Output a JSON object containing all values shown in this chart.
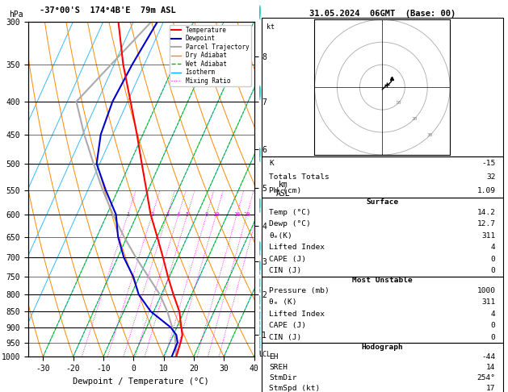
{
  "title_left": "-37°00'S  174°4B'E  79m ASL",
  "title_right": "31.05.2024  06GMT  (Base: 00)",
  "xlabel": "Dewpoint / Temperature (°C)",
  "temp_profile": {
    "pressure": [
      1000,
      950,
      925,
      900,
      850,
      800,
      750,
      700,
      650,
      600,
      550,
      500,
      450,
      400,
      350,
      300
    ],
    "temperature": [
      14.2,
      13.5,
      13.0,
      11.5,
      8.5,
      4.0,
      -0.5,
      -5.0,
      -10.0,
      -15.5,
      -20.5,
      -26.0,
      -32.0,
      -39.0,
      -47.0,
      -55.0
    ]
  },
  "dewp_profile": {
    "pressure": [
      1000,
      950,
      925,
      900,
      850,
      800,
      750,
      700,
      650,
      600,
      550,
      500,
      450,
      400,
      350,
      300
    ],
    "temperature": [
      12.7,
      12.5,
      11.0,
      8.0,
      -1.0,
      -7.5,
      -12.0,
      -18.0,
      -23.0,
      -27.0,
      -34.0,
      -41.0,
      -44.0,
      -45.0,
      -44.0,
      -42.0
    ]
  },
  "parcel_profile": {
    "pressure": [
      1000,
      950,
      925,
      900,
      850,
      800,
      750,
      700,
      650,
      600,
      550,
      500,
      450,
      400,
      350,
      300
    ],
    "temperature": [
      14.2,
      11.8,
      10.5,
      8.5,
      4.5,
      -0.5,
      -7.0,
      -14.0,
      -21.0,
      -28.0,
      -35.0,
      -42.0,
      -49.5,
      -57.0,
      -51.0,
      -44.0
    ]
  },
  "colors": {
    "temperature": "#ff0000",
    "dewpoint": "#0000cc",
    "parcel": "#aaaaaa",
    "dry_adiabat": "#ff8800",
    "wet_adiabat": "#00bb00",
    "isotherm": "#00aaff",
    "mixing_ratio": "#ff00ff"
  },
  "info_panel": {
    "K": "-15",
    "Totals_Totals": "32",
    "PW_cm": "1.09",
    "Surface_Temp": "14.2",
    "Surface_Dewp": "12.7",
    "Surface_theta_e": "311",
    "Surface_LI": "4",
    "Surface_CAPE": "0",
    "Surface_CIN": "0",
    "MU_Pressure": "1000",
    "MU_theta_e": "311",
    "MU_LI": "4",
    "MU_CAPE": "0",
    "MU_CIN": "0",
    "EH": "-44",
    "SREH": "14",
    "StmDir": "254°",
    "StmSpd": "17"
  },
  "lcl_pressure": 992,
  "km_labels": {
    "1": 925,
    "2": 800,
    "3": 710,
    "4": 625,
    "5": 545,
    "6": 475,
    "7": 400,
    "8": 340
  },
  "wind_barb_pressures": [
    1000,
    950,
    900,
    850,
    800,
    750,
    700,
    600,
    500,
    400,
    300
  ],
  "wind_barb_u": [
    -4,
    -5,
    -6,
    -7,
    -8,
    -9,
    -10,
    -11,
    -12,
    -13,
    -14
  ],
  "wind_barb_v": [
    3,
    3,
    4,
    4,
    5,
    5,
    6,
    6,
    7,
    8,
    9
  ]
}
